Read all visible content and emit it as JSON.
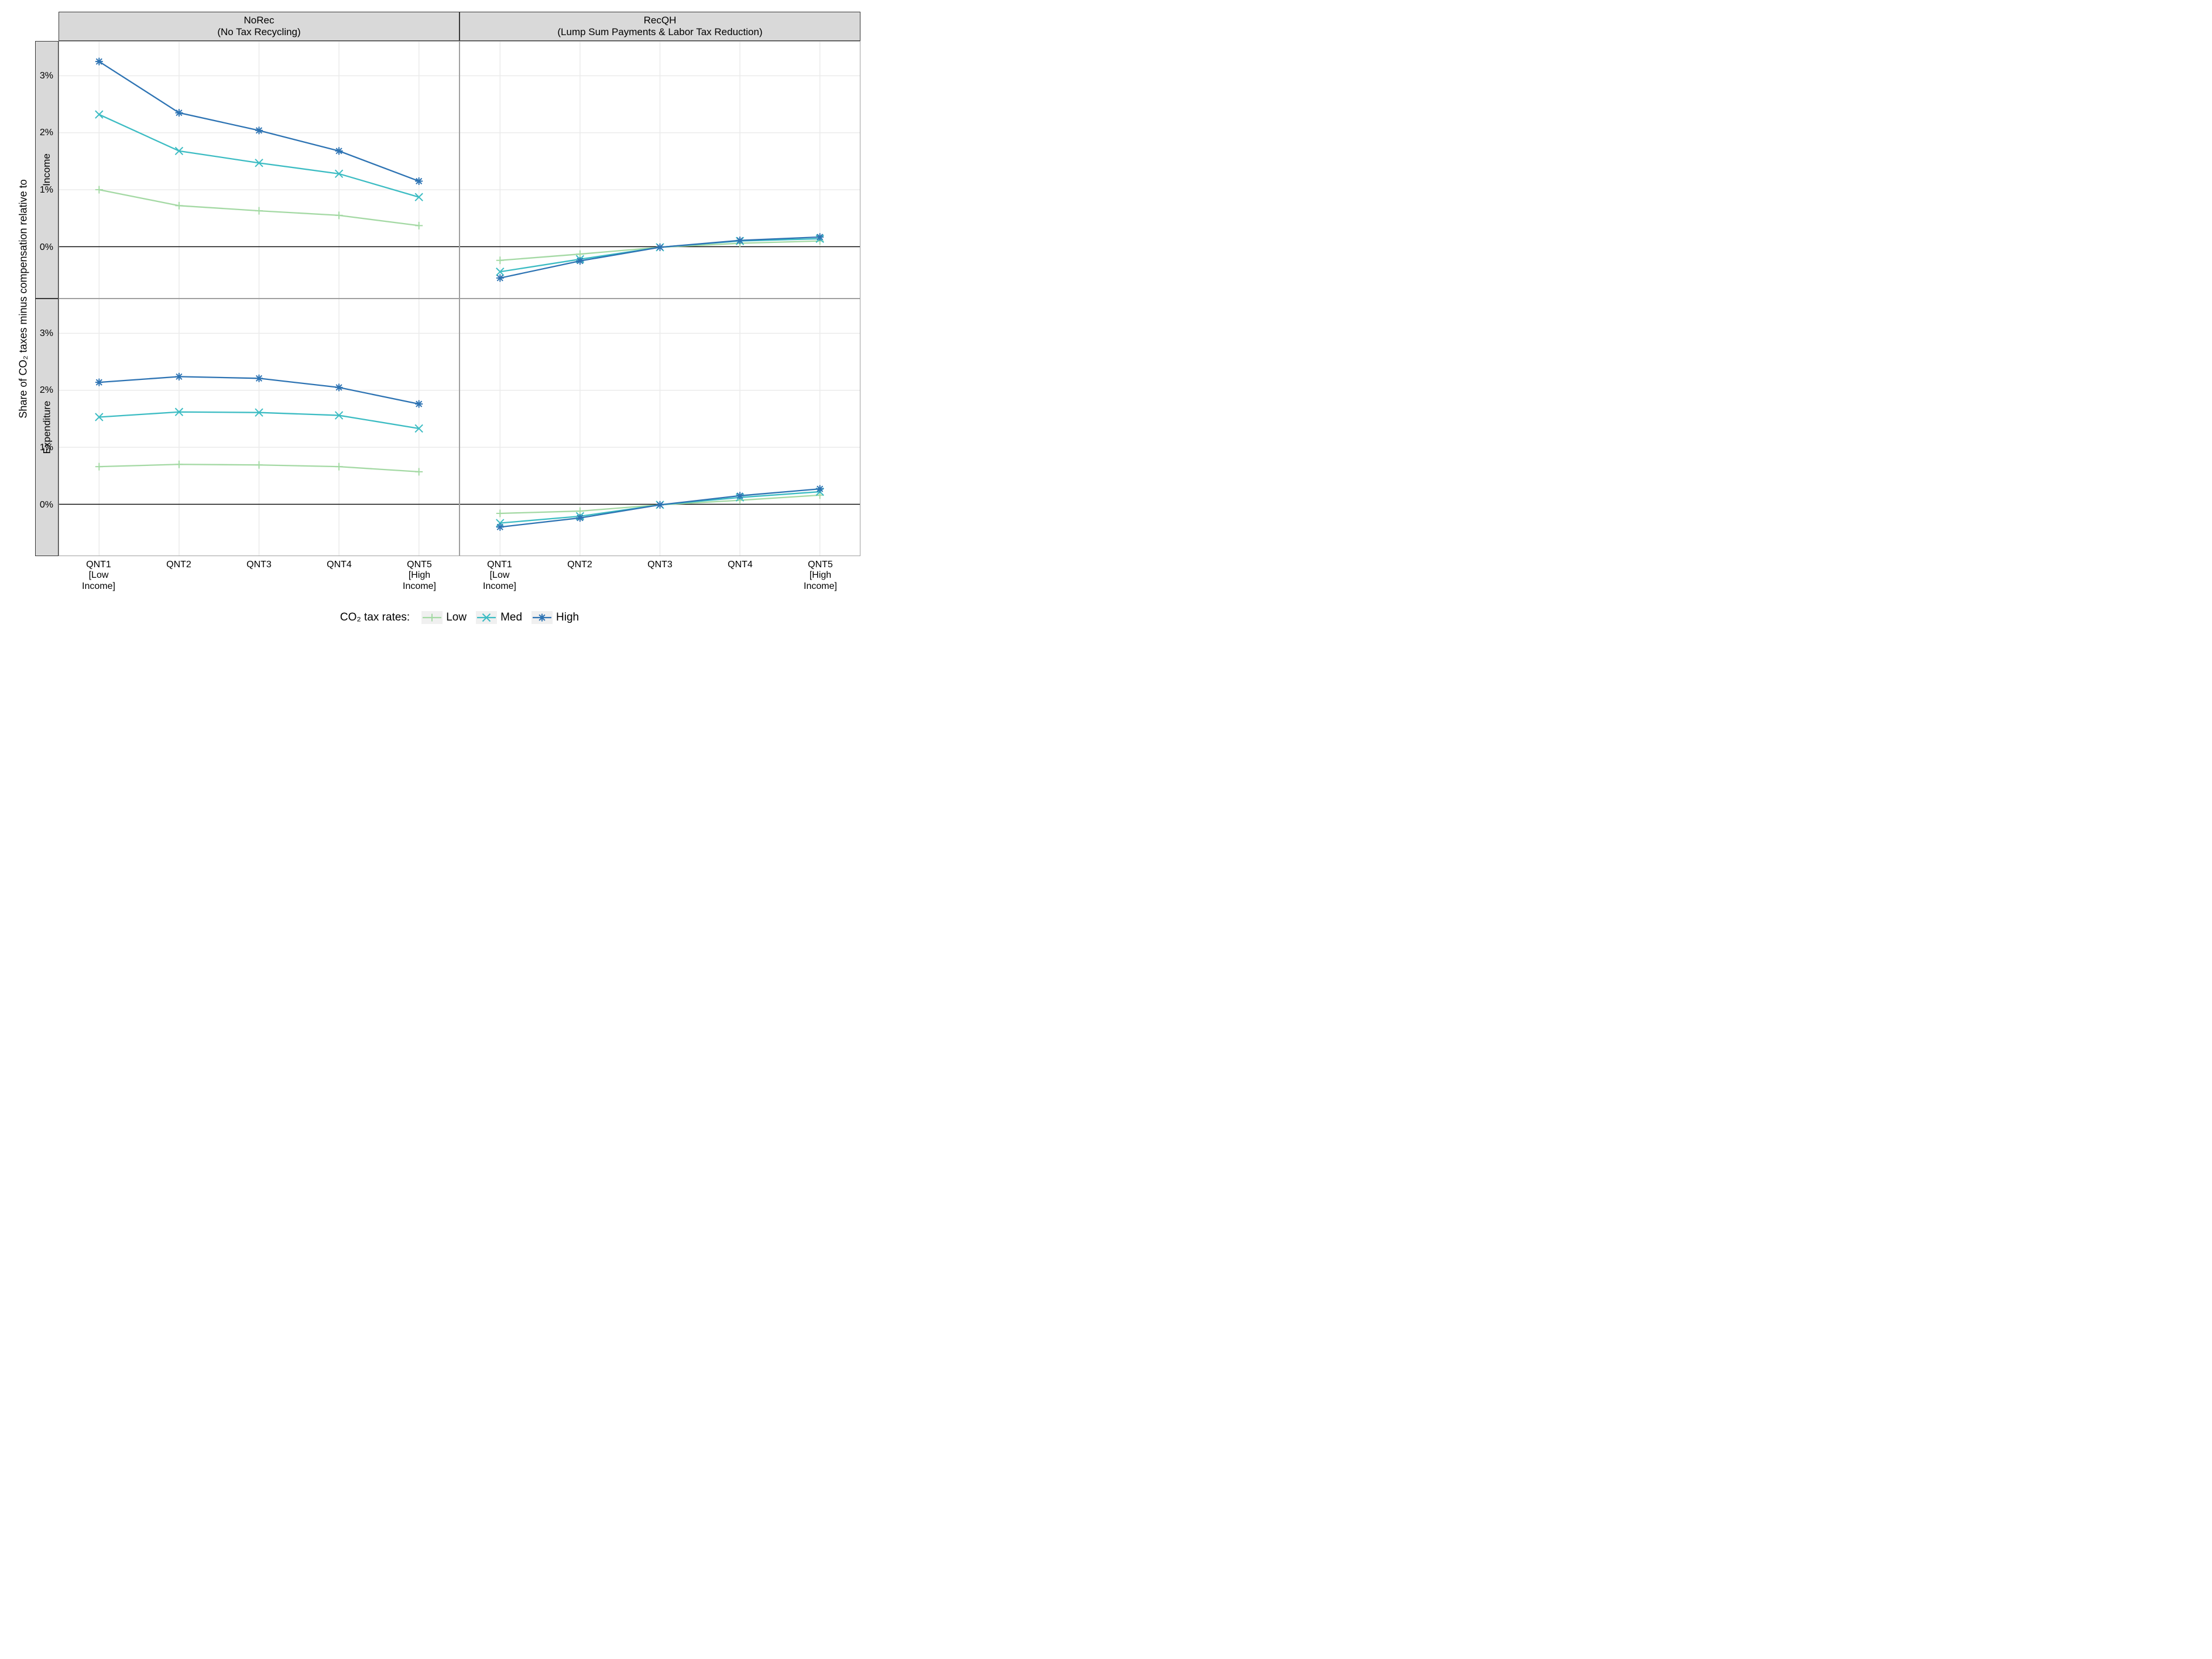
{
  "layout": {
    "y_label": "Share of CO₂ taxes minus compensation relative to",
    "col_facets": [
      {
        "key": "norec",
        "label": "NoRec\n(No Tax Recycling)"
      },
      {
        "key": "recqh",
        "label": "RecQH\n(Lump Sum Payments & Labor Tax Reduction)"
      }
    ],
    "row_facets": [
      {
        "key": "income",
        "label": "Income"
      },
      {
        "key": "expenditure",
        "label": "Expenditure"
      }
    ],
    "x_categories": [
      "QNT1\n[Low\nIncome]",
      "QNT2",
      "QNT3",
      "QNT4",
      "QNT5\n[High\nIncome]"
    ],
    "ylim": [
      -0.9,
      3.6
    ],
    "y_ticks": [
      0,
      1,
      2,
      3
    ],
    "y_tick_labels": [
      "0%",
      "1%",
      "2%",
      "3%"
    ],
    "grid_color": "#ebebeb",
    "zero_line_color": "#000000",
    "panel_border_color": "#a0a0a0",
    "strip_background": "#d9d9d9",
    "strip_border": "#383838",
    "background_color": "#ffffff",
    "label_fontsize": 18,
    "tick_fontsize": 16,
    "strip_fontsize": 17,
    "legend_fontsize": 19,
    "line_width": 2.3
  },
  "series": [
    {
      "key": "low",
      "label": "Low",
      "color": "#a4d9a4",
      "marker": "plus"
    },
    {
      "key": "med",
      "label": "Med",
      "color": "#3cbcc3",
      "marker": "x"
    },
    {
      "key": "high",
      "label": "High",
      "color": "#2d73b3",
      "marker": "star"
    }
  ],
  "legend_title": "CO₂ tax rates:",
  "data": {
    "norec": {
      "income": {
        "low": [
          1.0,
          0.72,
          0.63,
          0.55,
          0.37
        ],
        "med": [
          2.32,
          1.68,
          1.47,
          1.28,
          0.87
        ],
        "high": [
          3.25,
          2.35,
          2.04,
          1.68,
          1.15
        ]
      },
      "expenditure": {
        "low": [
          0.66,
          0.7,
          0.69,
          0.66,
          0.57
        ],
        "med": [
          1.53,
          1.62,
          1.61,
          1.56,
          1.33
        ],
        "high": [
          2.14,
          2.24,
          2.21,
          2.05,
          1.76
        ]
      }
    },
    "recqh": {
      "income": {
        "low": [
          -0.24,
          -0.13,
          -0.01,
          0.06,
          0.1
        ],
        "med": [
          -0.44,
          -0.22,
          -0.01,
          0.1,
          0.14
        ],
        "high": [
          -0.55,
          -0.25,
          -0.01,
          0.11,
          0.17
        ]
      },
      "expenditure": {
        "low": [
          -0.16,
          -0.12,
          -0.01,
          0.07,
          0.16
        ],
        "med": [
          -0.33,
          -0.21,
          -0.01,
          0.12,
          0.22
        ],
        "high": [
          -0.4,
          -0.24,
          -0.01,
          0.15,
          0.27
        ]
      }
    }
  }
}
